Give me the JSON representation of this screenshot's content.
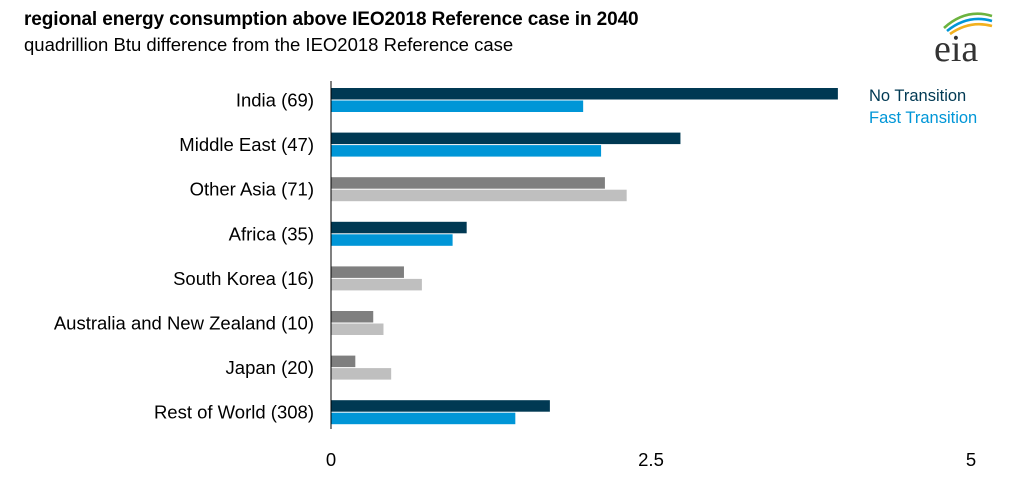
{
  "header": {
    "title": "regional energy consumption above IEO2018 Reference case in 2040",
    "subtitle": "quadrillion Btu difference from the IEO2018 Reference case"
  },
  "logo": {
    "text": "eia",
    "icon": "eia-logo-icon"
  },
  "colors": {
    "no_transition": "#003953",
    "fast_transition": "#0096d7",
    "no_transition_gray": "#7f7f7f",
    "fast_transition_gray": "#bfbfbf",
    "axis": "#000000"
  },
  "chart_data": {
    "type": "bar",
    "orientation": "horizontal",
    "title": "regional energy consumption above IEO2018 Reference case in 2040",
    "subtitle": "quadrillion Btu difference from the IEO2018 Reference case",
    "categories": [
      "India (69)",
      "Middle East (47)",
      "Other Asia (71)",
      "Africa (35)",
      "South Korea (16)",
      "Australia and New Zealand (10)",
      "Japan (20)",
      "Rest of World (308)"
    ],
    "series": [
      {
        "name": "No Transition",
        "values": [
          3.96,
          2.73,
          2.14,
          1.06,
          0.57,
          0.33,
          0.19,
          1.71
        ]
      },
      {
        "name": "Fast Transition",
        "values": [
          1.97,
          2.11,
          2.31,
          0.95,
          0.71,
          0.41,
          0.47,
          1.44
        ]
      }
    ],
    "highlighted_categories": [
      "India (69)",
      "Middle East (47)",
      "Africa (35)",
      "Rest of World (308)"
    ],
    "xlim": [
      0,
      5
    ],
    "xticks": [
      "0",
      "2.5",
      "5"
    ],
    "xtick_values": [
      0,
      2.5,
      5
    ],
    "xlabel": "",
    "ylabel": "",
    "grid": false,
    "legend_position": "top-right"
  }
}
